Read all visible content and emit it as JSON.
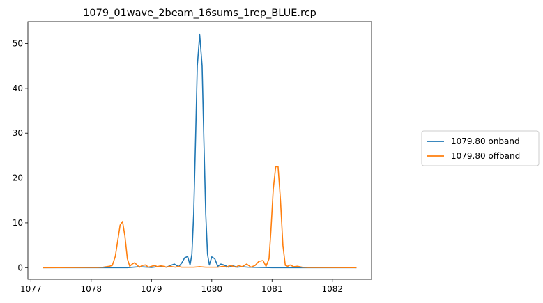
{
  "chart_data": {
    "type": "line",
    "title": "1079_01wave_2beam_16sums_1rep_BLUE.rcp",
    "xlabel": "",
    "ylabel": "",
    "xlim": [
      1076.95,
      1082.65
    ],
    "ylim": [
      -2.6,
      54.9
    ],
    "xticks": [
      1077,
      1078,
      1079,
      1080,
      1081,
      1082
    ],
    "yticks": [
      0,
      10,
      20,
      30,
      40,
      50
    ],
    "grid": false,
    "legend_position": "center-right-outside",
    "series": [
      {
        "name": "1079.80 onband",
        "color": "#1f77b4",
        "x": [
          1077.2,
          1078.0,
          1078.6,
          1078.8,
          1079.0,
          1079.15,
          1079.25,
          1079.32,
          1079.38,
          1079.45,
          1079.5,
          1079.55,
          1079.6,
          1079.64,
          1079.67,
          1079.7,
          1079.73,
          1079.76,
          1079.8,
          1079.84,
          1079.87,
          1079.9,
          1079.93,
          1079.96,
          1080.0,
          1080.05,
          1080.1,
          1080.15,
          1080.2,
          1080.28,
          1080.35,
          1080.42,
          1080.5,
          1080.6,
          1080.8,
          1081.0,
          1081.5,
          1082.4
        ],
        "y": [
          0,
          0,
          0,
          0.2,
          0.05,
          0.3,
          0.1,
          0.5,
          0.8,
          0.2,
          1.0,
          2.2,
          2.5,
          0.6,
          3.0,
          12.0,
          28.0,
          45.0,
          52.0,
          45.0,
          28.0,
          12.0,
          3.0,
          0.6,
          2.4,
          2.0,
          0.3,
          0.8,
          0.6,
          0.1,
          0.4,
          0.1,
          0.2,
          0.1,
          0.05,
          0,
          0,
          0
        ]
      },
      {
        "name": "1079.80 offband",
        "color": "#ff7f0e",
        "x": [
          1077.2,
          1078.1,
          1078.2,
          1078.3,
          1078.35,
          1078.4,
          1078.44,
          1078.48,
          1078.52,
          1078.56,
          1078.6,
          1078.64,
          1078.68,
          1078.72,
          1078.76,
          1078.8,
          1078.85,
          1078.9,
          1078.95,
          1079.0,
          1079.05,
          1079.1,
          1079.15,
          1079.2,
          1079.25,
          1079.3,
          1079.35,
          1079.4,
          1079.45,
          1079.5,
          1079.6,
          1079.7,
          1079.8,
          1079.9,
          1080.0,
          1080.1,
          1080.2,
          1080.25,
          1080.3,
          1080.4,
          1080.45,
          1080.5,
          1080.58,
          1080.65,
          1080.72,
          1080.78,
          1080.85,
          1080.9,
          1080.95,
          1080.98,
          1081.02,
          1081.06,
          1081.1,
          1081.14,
          1081.18,
          1081.22,
          1081.26,
          1081.3,
          1081.36,
          1081.42,
          1081.5,
          1081.6,
          1082.4
        ],
        "y": [
          0,
          0.05,
          0.1,
          0.3,
          0.5,
          2.5,
          6.0,
          9.5,
          10.3,
          7.0,
          2.0,
          0.3,
          0.8,
          1.1,
          0.6,
          0.1,
          0.5,
          0.6,
          0.1,
          0.3,
          0.5,
          0.2,
          0.4,
          0.3,
          0.1,
          0.3,
          0.2,
          0.1,
          0.3,
          0.1,
          0.1,
          0.1,
          0.2,
          0.1,
          0.1,
          0.1,
          0.3,
          0.1,
          0.5,
          0.1,
          0.5,
          0.2,
          0.8,
          0.1,
          0.5,
          1.4,
          1.6,
          0.3,
          2.0,
          8.0,
          17.5,
          22.5,
          22.5,
          15.0,
          5.0,
          0.5,
          0.3,
          0.6,
          0.2,
          0.3,
          0.1,
          0.05,
          0
        ]
      }
    ]
  }
}
